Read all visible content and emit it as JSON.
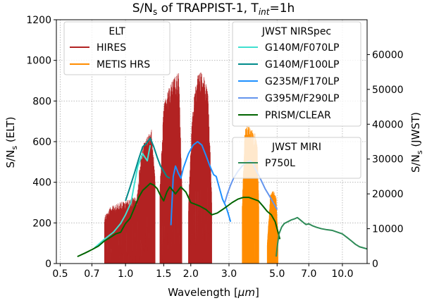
{
  "chart_data": {
    "type": "line",
    "title": {
      "main": "S/N",
      "sub": "s",
      "mid": " of TRAPPIST-1, T",
      "sub2": "int",
      "tail": "=1h"
    },
    "xlabel": {
      "text": "Wavelength [",
      "unit": "μm",
      "close": "]"
    },
    "ylabel_left": {
      "main": "S/N",
      "sub": "s",
      "tail": " (ELT)"
    },
    "ylabel_right": {
      "main": "S/N",
      "sub": "s",
      "tail": " (JWST)"
    },
    "x_scale": "log",
    "xlim": [
      0.48,
      13.0
    ],
    "ylim_left": [
      0,
      1200
    ],
    "ylim_right": [
      0,
      70000
    ],
    "x_ticks": [
      0.5,
      0.7,
      1.0,
      1.5,
      2.0,
      3.0,
      5.0,
      7.0,
      10.0
    ],
    "x_tick_labels": [
      "0.5",
      "0.7",
      "1.0",
      "1.5",
      "2.0",
      "3.0",
      "5.0",
      "7.0",
      "10.0"
    ],
    "y_left_ticks": [
      0,
      200,
      400,
      600,
      800,
      1000,
      1200
    ],
    "y_right_ticks": [
      0,
      10000,
      20000,
      30000,
      40000,
      50000,
      60000
    ],
    "grid": true,
    "series": [
      {
        "name": "HIRES",
        "group": "ELT",
        "axis": "left",
        "color": "#b22222",
        "style": "spectrum",
        "bands": [
          {
            "x0": 0.8,
            "x1": 1.12,
            "env": [
              [
                0.8,
                235
              ],
              [
                0.86,
                285
              ],
              [
                0.93,
                300
              ],
              [
                1.0,
                310
              ],
              [
                1.06,
                320
              ],
              [
                1.12,
                345
              ]
            ]
          },
          {
            "x0": 1.12,
            "x1": 1.37,
            "env": [
              [
                1.12,
                290
              ],
              [
                1.17,
                520
              ],
              [
                1.22,
                600
              ],
              [
                1.27,
                630
              ],
              [
                1.32,
                660
              ],
              [
                1.37,
                420
              ]
            ]
          },
          {
            "x0": 1.44,
            "x1": 1.82,
            "env": [
              [
                1.44,
                380
              ],
              [
                1.5,
                780
              ],
              [
                1.56,
                850
              ],
              [
                1.62,
                900
              ],
              [
                1.7,
                930
              ],
              [
                1.76,
                950
              ],
              [
                1.82,
                400
              ]
            ]
          },
          {
            "x0": 1.95,
            "x1": 2.5,
            "env": [
              [
                1.95,
                300
              ],
              [
                2.02,
                700
              ],
              [
                2.1,
                900
              ],
              [
                2.2,
                950
              ],
              [
                2.3,
                920
              ],
              [
                2.4,
                850
              ],
              [
                2.5,
                350
              ]
            ]
          }
        ]
      },
      {
        "name": "METIS HRS",
        "group": "ELT",
        "axis": "left",
        "color": "#ff8c00",
        "style": "spectrum",
        "bands": [
          {
            "x0": 3.45,
            "x1": 4.12,
            "env": [
              [
                3.45,
                300
              ],
              [
                3.55,
                660
              ],
              [
                3.65,
                680
              ],
              [
                3.8,
                665
              ],
              [
                3.95,
                640
              ],
              [
                4.05,
                600
              ],
              [
                4.12,
                300
              ]
            ]
          },
          {
            "x0": 4.5,
            "x1": 5.05,
            "env": [
              [
                4.5,
                100
              ],
              [
                4.65,
                340
              ],
              [
                4.8,
                360
              ],
              [
                4.95,
                330
              ],
              [
                5.05,
                150
              ]
            ]
          }
        ]
      },
      {
        "name": "G140M/F070LP",
        "group": "JWST NIRSpec",
        "axis": "right",
        "color": "#40e0d0",
        "points": [
          [
            0.72,
            4500
          ],
          [
            0.8,
            7000
          ],
          [
            0.88,
            9000
          ],
          [
            0.95,
            11500
          ],
          [
            1.0,
            14000
          ],
          [
            1.06,
            17500
          ],
          [
            1.1,
            23000
          ],
          [
            1.14,
            28000
          ],
          [
            1.2,
            31500
          ],
          [
            1.26,
            29500
          ],
          [
            1.3,
            34000
          ]
        ]
      },
      {
        "name": "G140M/F100LP",
        "group": "JWST NIRSpec",
        "axis": "right",
        "color": "#008b8b",
        "points": [
          [
            1.0,
            18000
          ],
          [
            1.05,
            22000
          ],
          [
            1.1,
            26000
          ],
          [
            1.15,
            30000
          ],
          [
            1.2,
            33500
          ],
          [
            1.25,
            34500
          ],
          [
            1.3,
            36000
          ],
          [
            1.35,
            33500
          ],
          [
            1.4,
            30500
          ],
          [
            1.45,
            28000
          ],
          [
            1.5,
            26500
          ],
          [
            1.55,
            25000
          ],
          [
            1.6,
            24500
          ]
        ]
      },
      {
        "name": "G235M/F170LP",
        "group": "JWST NIRSpec",
        "axis": "right",
        "color": "#1e90ff",
        "points": [
          [
            1.62,
            11000
          ],
          [
            1.66,
            25000
          ],
          [
            1.7,
            28000
          ],
          [
            1.75,
            26000
          ],
          [
            1.8,
            24500
          ],
          [
            1.85,
            27500
          ],
          [
            1.95,
            31500
          ],
          [
            2.05,
            34000
          ],
          [
            2.15,
            35000
          ],
          [
            2.25,
            34000
          ],
          [
            2.35,
            31000
          ],
          [
            2.45,
            28000
          ],
          [
            2.55,
            25500
          ],
          [
            2.62,
            25000
          ],
          [
            2.7,
            22000
          ],
          [
            2.8,
            18500
          ],
          [
            2.9,
            16500
          ],
          [
            2.97,
            14500
          ],
          [
            3.05,
            12000
          ]
        ]
      },
      {
        "name": "G395M/F290LP",
        "group": "JWST NIRSpec",
        "axis": "right",
        "color": "#6495ed",
        "points": [
          [
            2.87,
            17500
          ],
          [
            2.95,
            20000
          ],
          [
            3.05,
            22500
          ],
          [
            3.15,
            24500
          ],
          [
            3.3,
            26500
          ],
          [
            3.45,
            28000
          ],
          [
            3.6,
            29000
          ],
          [
            3.75,
            29500
          ],
          [
            3.85,
            29000
          ],
          [
            3.95,
            27500
          ],
          [
            4.1,
            25500
          ],
          [
            4.25,
            23500
          ],
          [
            4.4,
            21500
          ],
          [
            4.6,
            19500
          ],
          [
            4.8,
            17500
          ],
          [
            5.0,
            15500
          ]
        ]
      },
      {
        "name": "PRISM/CLEAR",
        "group": "JWST NIRSpec",
        "axis": "right",
        "color": "#006400",
        "points": [
          [
            0.6,
            2000
          ],
          [
            0.65,
            3000
          ],
          [
            0.7,
            4000
          ],
          [
            0.75,
            5000
          ],
          [
            0.8,
            6500
          ],
          [
            0.85,
            7500
          ],
          [
            0.9,
            8500
          ],
          [
            0.95,
            9000
          ],
          [
            1.0,
            11500
          ],
          [
            1.05,
            13000
          ],
          [
            1.1,
            16000
          ],
          [
            1.15,
            19000
          ],
          [
            1.2,
            21000
          ],
          [
            1.25,
            22000
          ],
          [
            1.3,
            23000
          ],
          [
            1.35,
            22500
          ],
          [
            1.4,
            21500
          ],
          [
            1.45,
            19500
          ],
          [
            1.5,
            18000
          ],
          [
            1.55,
            20500
          ],
          [
            1.6,
            22000
          ],
          [
            1.65,
            21000
          ],
          [
            1.7,
            20000
          ],
          [
            1.8,
            22000
          ],
          [
            1.9,
            20500
          ],
          [
            2.0,
            17500
          ],
          [
            2.1,
            17000
          ],
          [
            2.2,
            16500
          ],
          [
            2.35,
            15500
          ],
          [
            2.5,
            14000
          ],
          [
            2.65,
            14500
          ],
          [
            2.8,
            15500
          ],
          [
            2.95,
            16500
          ],
          [
            3.1,
            17500
          ],
          [
            3.3,
            18500
          ],
          [
            3.5,
            19000
          ],
          [
            3.7,
            19000
          ],
          [
            3.9,
            18500
          ],
          [
            4.1,
            18000
          ],
          [
            4.3,
            16500
          ],
          [
            4.5,
            15000
          ],
          [
            4.7,
            14000
          ],
          [
            4.9,
            12000
          ],
          [
            5.05,
            9000
          ],
          [
            5.15,
            7000
          ]
        ]
      },
      {
        "name": "P750L",
        "group": "JWST MIRI",
        "axis": "right",
        "color": "#2e8b57",
        "points": [
          [
            4.95,
            2000
          ],
          [
            5.0,
            4500
          ],
          [
            5.1,
            8500
          ],
          [
            5.25,
            10500
          ],
          [
            5.4,
            11500
          ],
          [
            5.6,
            12000
          ],
          [
            5.8,
            12500
          ],
          [
            6.0,
            12800
          ],
          [
            6.2,
            13200
          ],
          [
            6.4,
            12500
          ],
          [
            6.6,
            11800
          ],
          [
            6.8,
            11200
          ],
          [
            7.0,
            11400
          ],
          [
            7.3,
            10800
          ],
          [
            7.6,
            10400
          ],
          [
            8.0,
            10000
          ],
          [
            8.5,
            9700
          ],
          [
            9.0,
            9500
          ],
          [
            9.5,
            9000
          ],
          [
            10.0,
            8500
          ],
          [
            10.5,
            7500
          ],
          [
            11.0,
            6500
          ],
          [
            11.5,
            5500
          ],
          [
            12.0,
            4800
          ],
          [
            12.5,
            4500
          ],
          [
            13.0,
            4200
          ]
        ]
      }
    ],
    "legends": [
      {
        "title": "ELT",
        "position": "upper left",
        "entries": [
          "HIRES",
          "METIS HRS"
        ]
      },
      {
        "title": "JWST NIRSpec",
        "position": "upper right",
        "entries": [
          "G140M/F070LP",
          "G140M/F100LP",
          "G235M/F170LP",
          "G395M/F290LP",
          "PRISM/CLEAR"
        ]
      },
      {
        "title": "JWST MIRI",
        "position": "center right",
        "entries": [
          "P750L"
        ]
      }
    ]
  }
}
